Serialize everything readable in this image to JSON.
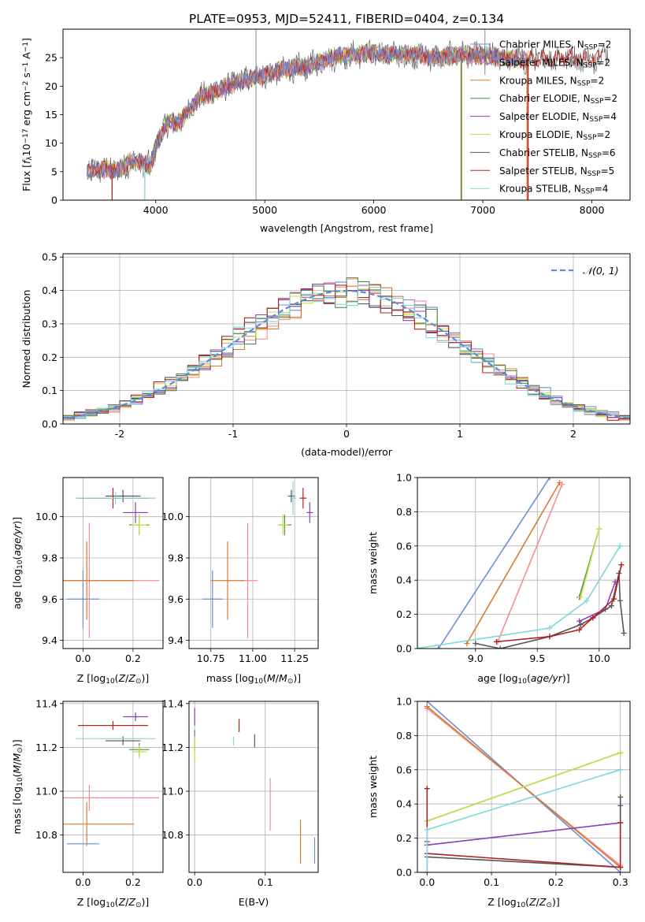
{
  "figure_title": "PLATE=0953, MJD=52411, FIBERID=0404, z=0.134",
  "model_colors": [
    "#6a8fd6",
    "#f28e91",
    "#d97b2e",
    "#4c8f4c",
    "#8e3fb5",
    "#c8e04a",
    "#555555",
    "#b22222",
    "#7fd6dc"
  ],
  "chart_data": [
    {
      "id": "spectrum",
      "type": "line",
      "title": "PLATE=0953, MJD=52411, FIBERID=0404, z=0.134",
      "xlabel": "wavelength [Angstrom, rest frame]",
      "ylabel": "Flux [f_λ 10^-17 erg cm^-2 s^-1 A^-1]",
      "xlim": [
        3150,
        8350
      ],
      "ylim": [
        0,
        30
      ],
      "xticks": [
        4000,
        5000,
        6000,
        7000,
        8000
      ],
      "yticks": [
        0,
        5,
        10,
        15,
        20,
        25
      ],
      "grid": false,
      "legend_position": "top-right",
      "legend": [
        "Chabrier MILES, N_SSP=2",
        "Salpeter MILES, N_SSP=2",
        "Kroupa MILES, N_SSP=2",
        "Chabrier ELODIE, N_SSP=2",
        "Salpeter ELODIE, N_SSP=4",
        "Kroupa ELODIE, N_SSP=2",
        "Chabrier STELIB, N_SSP=6",
        "Salpeter STELIB, N_SSP=5",
        "Kroupa STELIB, N_SSP=4"
      ],
      "continuum_x": [
        3370,
        3450,
        3550,
        3650,
        3750,
        3850,
        3950,
        4000,
        4100,
        4200,
        4300,
        4400,
        4600,
        4800,
        5000,
        5200,
        5400,
        5600,
        5800,
        6000,
        6200,
        6400,
        6600,
        6800,
        7000,
        7200,
        7400,
        7600,
        7800,
        8000,
        8150
      ],
      "continuum_y": [
        5.0,
        5.3,
        5.5,
        5.2,
        6.5,
        6.8,
        6.0,
        9.5,
        13.5,
        13.5,
        15.5,
        18.0,
        19.5,
        21.0,
        22.0,
        23.0,
        23.5,
        25.0,
        25.5,
        25.8,
        25.5,
        25.5,
        25.0,
        25.5,
        25.3,
        25.0,
        24.5,
        25.0,
        25.0,
        24.5,
        26.5
      ],
      "cutoff_segments": [
        {
          "model": 7,
          "x": 3600,
          "y_from": 5,
          "y_to": 0
        },
        {
          "model": 8,
          "x": 3900,
          "y_from": 5,
          "y_to": 0
        },
        {
          "model": 2,
          "x": 6800,
          "y_from": 25,
          "y_to": 0
        },
        {
          "model": 3,
          "x": 6805,
          "y_from": 25,
          "y_to": 0
        },
        {
          "model": 2,
          "x": 7405,
          "y_from": 25,
          "y_to": 0
        },
        {
          "model": 7,
          "x": 7415,
          "y_from": 25,
          "y_to": 0
        },
        {
          "model": 6,
          "x": 4920,
          "y_from": 30,
          "y_to": 0
        },
        {
          "model": 6,
          "x": 7020,
          "y_from": 30,
          "y_to": 22
        }
      ]
    },
    {
      "id": "residuals",
      "type": "line",
      "xlabel": "(data-model)/error",
      "ylabel": "Normed distribution",
      "xlim": [
        -2.5,
        2.5
      ],
      "ylim": [
        0,
        0.51
      ],
      "xticks": [
        -2,
        -1,
        0,
        1,
        2
      ],
      "yticks": [
        0.0,
        0.1,
        0.2,
        0.3,
        0.4,
        0.5
      ],
      "grid": true,
      "legend_position": "top-right",
      "legend": [
        "N(0, 1)"
      ],
      "normal_curve": {
        "mean": 0,
        "sigma": 1
      }
    },
    {
      "id": "age-vs-Z",
      "type": "scatter",
      "xlabel": "Z [log10(Z/Z⊙)]",
      "ylabel": "age [log10(age/yr)]",
      "xlim": [
        -0.08,
        0.32
      ],
      "ylim": [
        9.36,
        10.19
      ],
      "xticks": [
        0.0,
        0.2
      ],
      "yticks": [
        9.4,
        9.6,
        9.8,
        10.0
      ],
      "grid": true,
      "points": [
        {
          "model": 0,
          "x": 0.0,
          "y": 9.6,
          "xerr": 0.065,
          "yerr": 0.14
        },
        {
          "model": 1,
          "x": 0.025,
          "y": 9.69,
          "xerr": 0.28,
          "yerr": 0.28
        },
        {
          "model": 2,
          "x": 0.015,
          "y": 9.69,
          "xerr": 0.19,
          "yerr": 0.19
        },
        {
          "model": 3,
          "x": 0.225,
          "y": 9.96,
          "xerr": 0.04,
          "yerr": 0.05
        },
        {
          "model": 4,
          "x": 0.21,
          "y": 10.02,
          "xerr": 0.05,
          "yerr": 0.05
        },
        {
          "model": 5,
          "x": 0.225,
          "y": 9.96,
          "xerr": 0.03,
          "yerr": 0.05
        },
        {
          "model": 6,
          "x": 0.16,
          "y": 10.1,
          "xerr": 0.07,
          "yerr": 0.03
        },
        {
          "model": 7,
          "x": 0.12,
          "y": 10.09,
          "xerr": 0.14,
          "yerr": 0.05
        },
        {
          "model": 8,
          "x": 0.13,
          "y": 10.09,
          "xerr": 0.16,
          "yerr": 0.03
        }
      ]
    },
    {
      "id": "age-vs-mass",
      "type": "scatter",
      "xlabel": "mass [log10(M/M⊙)]",
      "ylabel": "",
      "xlim": [
        10.62,
        11.39
      ],
      "ylim": [
        9.36,
        10.19
      ],
      "xticks": [
        10.75,
        11.0,
        11.25
      ],
      "yticks": [
        9.4,
        9.6,
        9.8,
        10.0
      ],
      "grid": true,
      "points": [
        {
          "model": 0,
          "x": 10.76,
          "y": 9.6,
          "xerr": 0.06,
          "yerr": 0.14
        },
        {
          "model": 1,
          "x": 10.97,
          "y": 9.69,
          "xerr": 0.06,
          "yerr": 0.28
        },
        {
          "model": 2,
          "x": 10.85,
          "y": 9.69,
          "xerr": 0.1,
          "yerr": 0.19
        },
        {
          "model": 3,
          "x": 11.19,
          "y": 9.96,
          "xerr": 0.04,
          "yerr": 0.05
        },
        {
          "model": 4,
          "x": 11.34,
          "y": 10.02,
          "xerr": 0.02,
          "yerr": 0.05
        },
        {
          "model": 5,
          "x": 11.18,
          "y": 9.96,
          "xerr": 0.03,
          "yerr": 0.05
        },
        {
          "model": 6,
          "x": 11.23,
          "y": 10.1,
          "xerr": 0.02,
          "yerr": 0.03
        },
        {
          "model": 7,
          "x": 11.3,
          "y": 10.09,
          "xerr": 0.02,
          "yerr": 0.05
        },
        {
          "model": 8,
          "x": 11.24,
          "y": 10.09,
          "xerr": 0.02,
          "yerr": 0.08
        }
      ]
    },
    {
      "id": "weight-vs-age",
      "type": "line",
      "xlabel": "age [log10(age/yr)]",
      "ylabel": "mass weight",
      "xlim": [
        8.53,
        10.25
      ],
      "ylim": [
        0,
        1.0
      ],
      "xticks": [
        9.0,
        9.5,
        10.0
      ],
      "yticks": [
        0.0,
        0.2,
        0.4,
        0.6,
        0.8,
        1.0
      ],
      "grid": true,
      "series": [
        {
          "model": 0,
          "x": [
            8.7,
            9.6
          ],
          "y": [
            0.0,
            1.0
          ]
        },
        {
          "model": 1,
          "x": [
            9.18,
            9.7
          ],
          "y": [
            0.04,
            0.96
          ]
        },
        {
          "model": 2,
          "x": [
            8.93,
            9.68
          ],
          "y": [
            0.03,
            0.97
          ]
        },
        {
          "model": 3,
          "x": [
            9.84,
            10.0
          ],
          "y": [
            0.3,
            0.7
          ]
        },
        {
          "model": 4,
          "x": [
            9.84,
            10.05,
            10.13
          ],
          "y": [
            0.16,
            0.23,
            0.39
          ]
        },
        {
          "model": 5,
          "x": [
            9.85,
            10.0
          ],
          "y": [
            0.3,
            0.7
          ]
        },
        {
          "model": 6,
          "x": [
            9.0,
            9.2,
            9.6,
            9.85,
            9.95,
            10.1,
            10.16,
            10.17,
            10.2
          ],
          "y": [
            0.03,
            0.0,
            0.07,
            0.14,
            0.18,
            0.25,
            0.44,
            0.28,
            0.09
          ]
        },
        {
          "model": 7,
          "x": [
            9.17,
            9.6,
            9.84,
            9.95,
            10.12,
            10.18
          ],
          "y": [
            0.04,
            0.07,
            0.11,
            0.18,
            0.29,
            0.49
          ]
        },
        {
          "model": 8,
          "x": [
            8.52,
            9.6,
            9.9,
            10.17
          ],
          "y": [
            0.0,
            0.12,
            0.28,
            0.6
          ]
        }
      ]
    },
    {
      "id": "mass-vs-Z",
      "type": "scatter",
      "xlabel": "Z [log10(Z/Z⊙)]",
      "ylabel": "mass [log10(M/M⊙)]",
      "xlim": [
        -0.08,
        0.32
      ],
      "ylim": [
        10.63,
        11.41
      ],
      "xticks": [
        0.0,
        0.2
      ],
      "yticks": [
        10.8,
        11.0,
        11.2,
        11.4
      ],
      "grid": true,
      "points": [
        {
          "model": 0,
          "x": 0.0,
          "y": 10.76,
          "xerr": 0.065,
          "yerr": 0.0
        },
        {
          "model": 1,
          "x": 0.025,
          "y": 10.97,
          "xerr": 0.28,
          "yerr": 0.06
        },
        {
          "model": 2,
          "x": 0.015,
          "y": 10.85,
          "xerr": 0.19,
          "yerr": 0.1
        },
        {
          "model": 3,
          "x": 0.225,
          "y": 11.19,
          "xerr": 0.04,
          "yerr": 0.03
        },
        {
          "model": 4,
          "x": 0.21,
          "y": 11.34,
          "xerr": 0.05,
          "yerr": 0.02
        },
        {
          "model": 5,
          "x": 0.225,
          "y": 11.18,
          "xerr": 0.03,
          "yerr": 0.03
        },
        {
          "model": 6,
          "x": 0.16,
          "y": 11.23,
          "xerr": 0.07,
          "yerr": 0.02
        },
        {
          "model": 7,
          "x": 0.12,
          "y": 11.3,
          "xerr": 0.14,
          "yerr": 0.02
        },
        {
          "model": 8,
          "x": 0.13,
          "y": 11.24,
          "xerr": 0.16,
          "yerr": 0.0
        }
      ]
    },
    {
      "id": "mass-vs-EBV",
      "type": "scatter",
      "xlabel": "E(B-V)",
      "ylabel": "",
      "xlim": [
        -0.008,
        0.175
      ],
      "ylim": [
        10.63,
        11.41
      ],
      "xticks": [
        0.0,
        0.1
      ],
      "yticks": [
        10.8,
        11.0,
        11.2,
        11.4
      ],
      "grid": true,
      "points": [
        {
          "model": 0,
          "x": 0.17,
          "y": 10.73,
          "yerr": 0.06
        },
        {
          "model": 1,
          "x": 0.107,
          "y": 10.94,
          "yerr": 0.12
        },
        {
          "model": 2,
          "x": 0.15,
          "y": 10.77,
          "yerr": 0.1
        },
        {
          "model": 3,
          "x": 0.0,
          "y": 11.23,
          "yerr": 0.05
        },
        {
          "model": 4,
          "x": 0.0,
          "y": 11.34,
          "yerr": 0.04
        },
        {
          "model": 5,
          "x": 0.0,
          "y": 11.19,
          "yerr": 0.06
        },
        {
          "model": 6,
          "x": 0.085,
          "y": 11.23,
          "yerr": 0.03
        },
        {
          "model": 7,
          "x": 0.063,
          "y": 11.3,
          "yerr": 0.03
        },
        {
          "model": 8,
          "x": 0.055,
          "y": 11.23,
          "yerr": 0.02
        }
      ]
    },
    {
      "id": "weight-vs-Z",
      "type": "line",
      "xlabel": "Z [log10(Z/Z⊙)]",
      "ylabel": "mass weight",
      "xlim": [
        -0.015,
        0.315
      ],
      "ylim": [
        0,
        1.0
      ],
      "xticks": [
        0.0,
        0.1,
        0.2,
        0.3
      ],
      "yticks": [
        0.0,
        0.2,
        0.4,
        0.6,
        0.8,
        1.0
      ],
      "grid": true,
      "series": [
        {
          "model": 0,
          "x": [
            0.0,
            0.3
          ],
          "y": [
            1.0,
            0.0
          ]
        },
        {
          "model": 1,
          "x": [
            0.0,
            0.3
          ],
          "y": [
            0.96,
            0.04
          ]
        },
        {
          "model": 2,
          "x": [
            0.0,
            0.3
          ],
          "y": [
            0.97,
            0.03
          ]
        },
        {
          "model": 3,
          "x": [
            0.0,
            0.3
          ],
          "y": [
            0.3,
            0.7
          ]
        },
        {
          "model": 4,
          "x": [
            0.0,
            0.0,
            0.3,
            0.3
          ],
          "y": [
            0.18,
            0.16,
            0.29,
            0.39
          ]
        },
        {
          "model": 5,
          "x": [
            0.0,
            0.3
          ],
          "y": [
            0.3,
            0.7
          ]
        },
        {
          "model": 6,
          "x": [
            0.0,
            0.0,
            0.3,
            0.3
          ],
          "y": [
            0.0,
            0.09,
            0.03,
            0.44
          ]
        },
        {
          "model": 7,
          "x": [
            0.0,
            0.0,
            0.3,
            0.3,
            0.3
          ],
          "y": [
            0.49,
            0.11,
            0.03,
            0.29,
            0.03
          ]
        },
        {
          "model": 8,
          "x": [
            0.0,
            0.0,
            0.3
          ],
          "y": [
            0.0,
            0.25,
            0.6
          ]
        }
      ]
    }
  ]
}
